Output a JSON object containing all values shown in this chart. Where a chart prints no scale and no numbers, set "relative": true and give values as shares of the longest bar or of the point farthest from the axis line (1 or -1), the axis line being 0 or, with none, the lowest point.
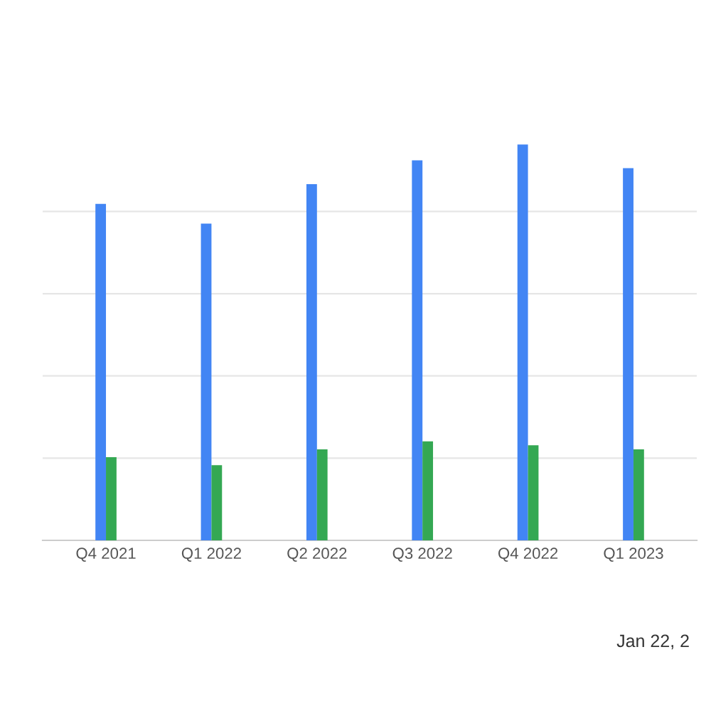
{
  "chart_data": {
    "type": "bar",
    "relative": true,
    "grid": "y",
    "categories": [
      "Q4 2021",
      "Q1 2022",
      "Q2 2022",
      "Q3 2022",
      "Q4 2022",
      "Q1 2023"
    ],
    "series": [
      {
        "color": "#4285f4",
        "values": [
          0.85,
          0.8,
          0.9,
          0.96,
          1,
          0.94
        ]
      },
      {
        "color": "#34a853",
        "values": [
          0.21,
          0.19,
          0.23,
          0.25,
          0.24,
          0.23
        ]
      }
    ],
    "annotations": [
      "Jan 22, 2"
    ]
  }
}
